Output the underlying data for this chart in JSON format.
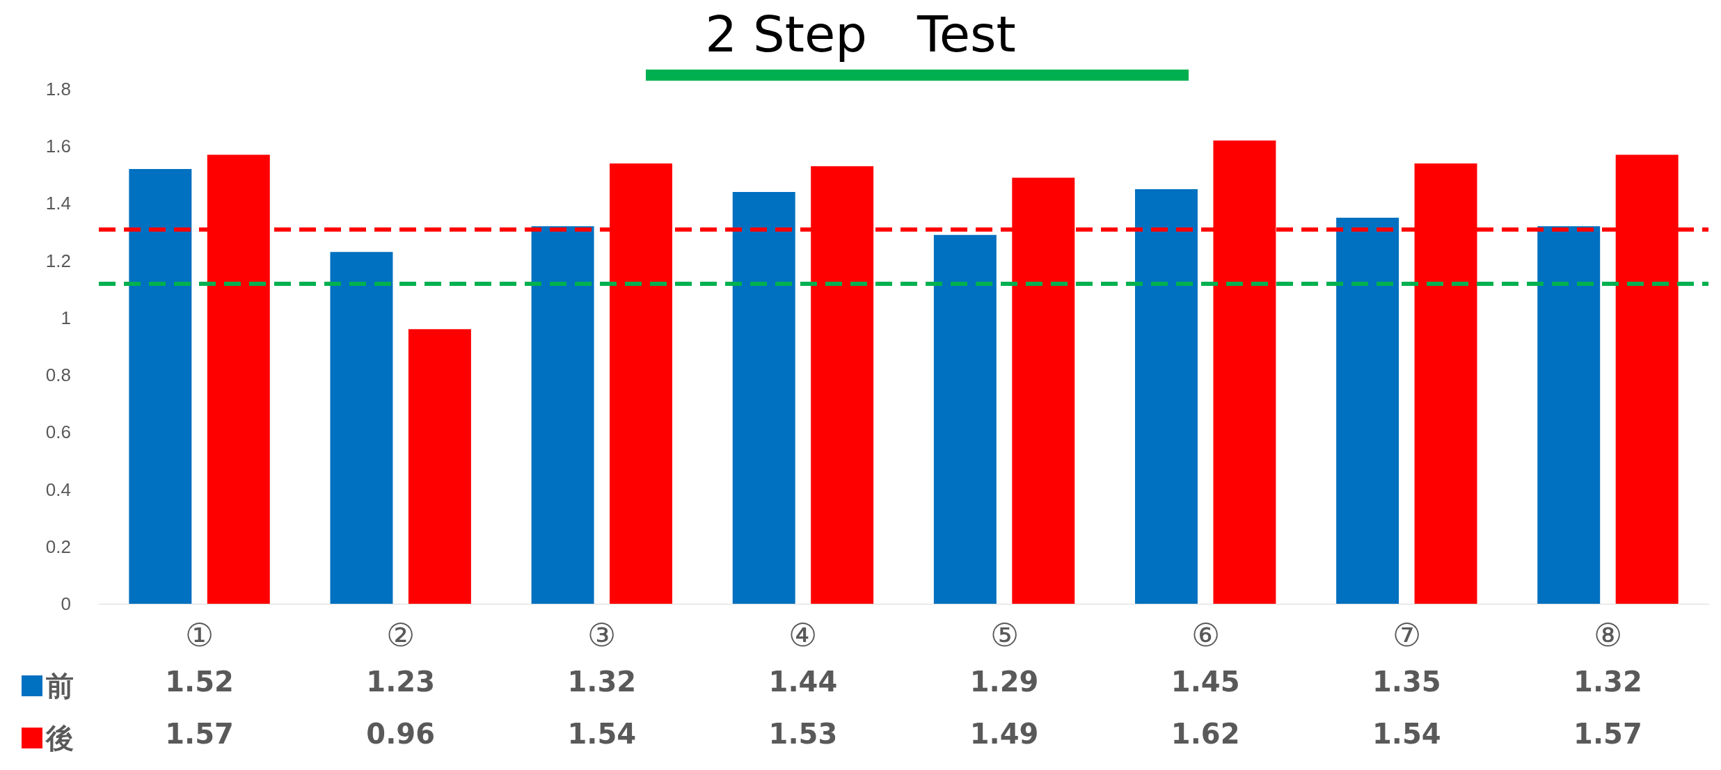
{
  "chart_data": {
    "type": "bar",
    "title": "2 Step　Test",
    "categories": [
      "①",
      "②",
      "③",
      "④",
      "⑤",
      "⑥",
      "⑦",
      "⑧"
    ],
    "series": [
      {
        "name": "前",
        "color": "#0070c0",
        "values": [
          1.52,
          1.23,
          1.32,
          1.44,
          1.29,
          1.45,
          1.35,
          1.32
        ]
      },
      {
        "name": "後",
        "color": "#ff0000",
        "values": [
          1.57,
          0.96,
          1.54,
          1.53,
          1.49,
          1.62,
          1.54,
          1.57
        ]
      }
    ],
    "ylim": [
      0,
      1.8
    ],
    "yticks": [
      0,
      0.2,
      0.4,
      0.6,
      0.8,
      1,
      1.2,
      1.4,
      1.6,
      1.8
    ],
    "ref_lines": [
      {
        "axis": "y",
        "value": 1.31,
        "color": "#ff0000",
        "line_style": "dashed"
      },
      {
        "axis": "y",
        "value": 1.12,
        "color": "#00b050",
        "line_style": "dashed"
      }
    ],
    "data_labels": true,
    "grid": false,
    "legend": "bottom left"
  }
}
